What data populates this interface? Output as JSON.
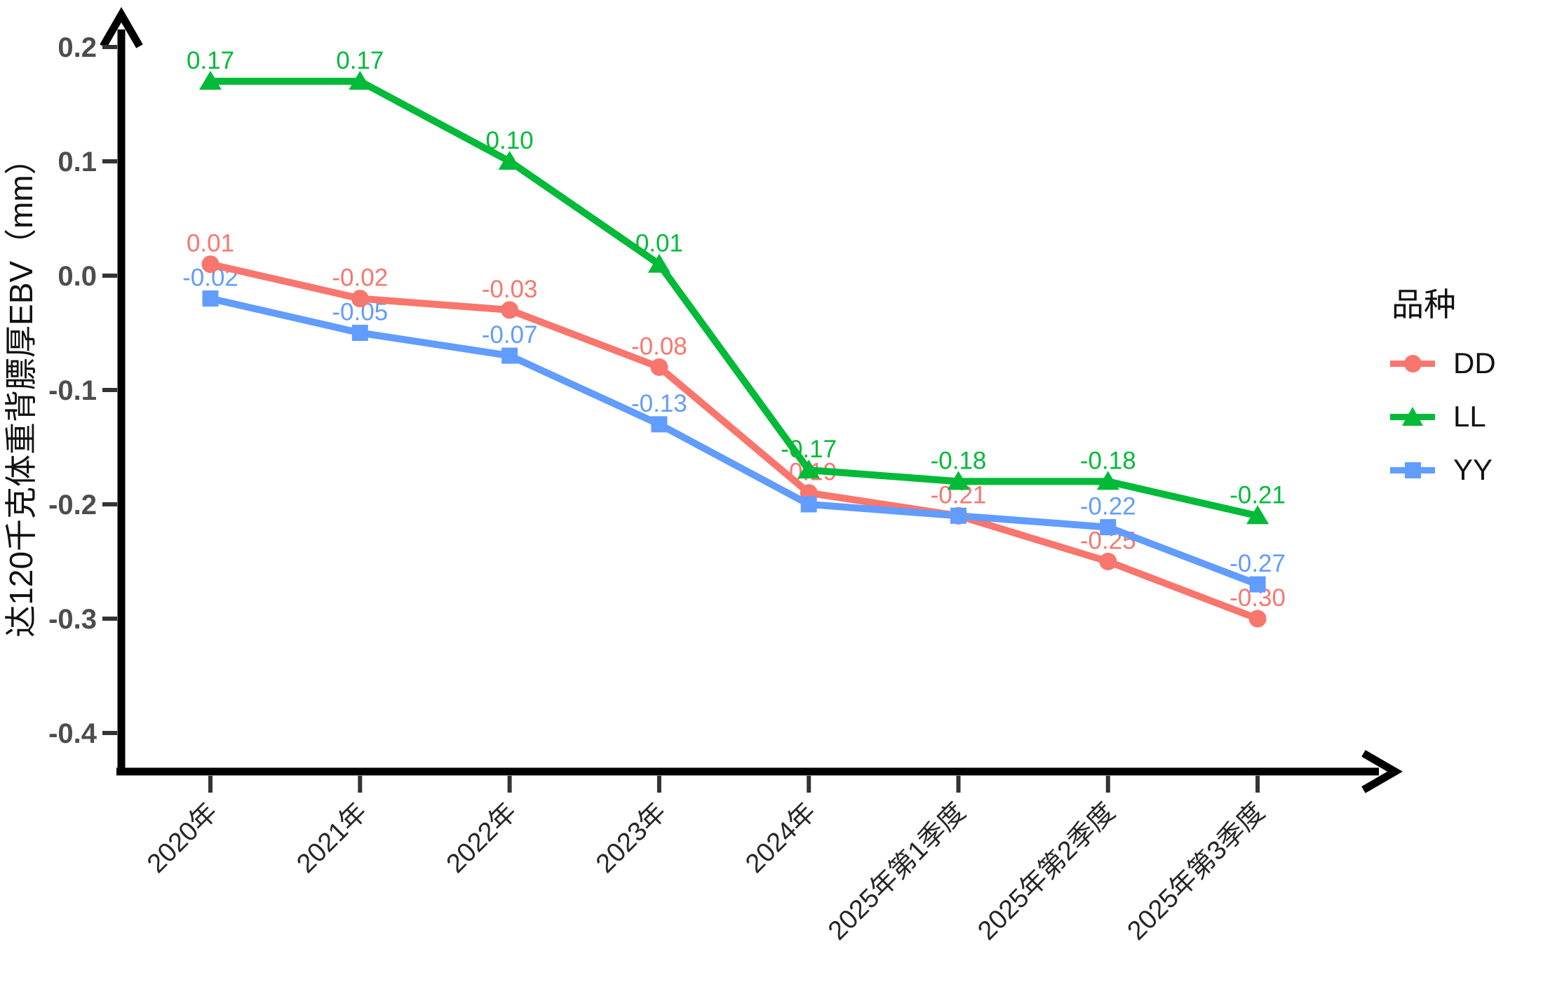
{
  "legend": {
    "title": "品种",
    "items": [
      {
        "label": "DD",
        "shape": "circle",
        "color": "#F8766D"
      },
      {
        "label": "LL",
        "shape": "triangle",
        "color": "#00BA38"
      },
      {
        "label": "YY",
        "shape": "square",
        "color": "#619CFF"
      }
    ]
  },
  "y_axis": {
    "title": "达120千克体重背膘厚EBV（mm）",
    "tick_labels": [
      "0.2",
      "0.1",
      "0.0",
      "-0.1",
      "-0.2",
      "-0.3",
      "-0.4"
    ],
    "tick_values": [
      0.2,
      0.1,
      0.0,
      -0.1,
      -0.2,
      -0.3,
      -0.4
    ]
  },
  "x_axis": {
    "tick_labels": [
      "2020年",
      "2021年",
      "2022年",
      "2023年",
      "2024年",
      "2025年第1季度",
      "2025年第2季度",
      "2025年第3季度"
    ]
  },
  "chart_data": {
    "type": "line",
    "title": "",
    "xlabel": "",
    "ylabel": "达120千克体重背膘厚EBV（mm）",
    "categories": [
      "2020年",
      "2021年",
      "2022年",
      "2023年",
      "2024年",
      "2025年第1季度",
      "2025年第2季度",
      "2025年第3季度"
    ],
    "series": [
      {
        "name": "DD",
        "color": "#F8766D",
        "marker": "circle",
        "values": [
          0.01,
          -0.02,
          -0.03,
          -0.08,
          -0.19,
          -0.21,
          -0.25,
          -0.3
        ],
        "point_labels": [
          "0.01",
          "-0.02",
          "-0.03",
          "-0.08",
          "-0.19",
          "-0.21",
          "-0.25",
          "-0.30"
        ]
      },
      {
        "name": "LL",
        "color": "#00BA38",
        "marker": "triangle",
        "values": [
          0.17,
          0.17,
          0.1,
          0.01,
          -0.17,
          -0.18,
          -0.18,
          -0.21
        ],
        "point_labels": [
          "0.17",
          "0.17",
          "0.10",
          "0.01",
          "-0.17",
          "-0.18",
          "-0.18",
          "-0.21"
        ]
      },
      {
        "name": "YY",
        "color": "#619CFF",
        "marker": "square",
        "values": [
          -0.02,
          -0.05,
          -0.07,
          -0.13,
          -0.2,
          -0.21,
          -0.22,
          -0.27
        ],
        "point_labels": [
          "-0.02",
          "-0.05",
          "-0.07",
          "-0.13",
          null,
          null,
          "-0.22",
          "-0.27"
        ]
      }
    ],
    "ylim": [
      -0.45,
      0.24
    ],
    "grid": false,
    "legend_position": "right",
    "legend_title": "品种"
  }
}
